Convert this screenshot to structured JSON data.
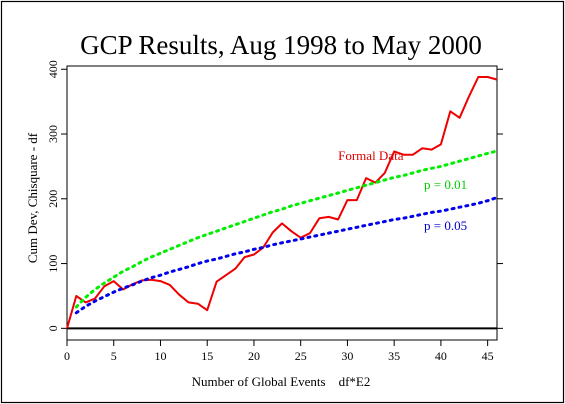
{
  "chart_data": {
    "type": "line",
    "title": "GCP Results, Aug 1998 to May 2000",
    "xlabel": "Number of Global Events    df*E2",
    "ylabel": "Cum Dev, Chisquare - df",
    "xlim": [
      0,
      46
    ],
    "ylim": [
      -18,
      405
    ],
    "x_ticks": [
      0,
      5,
      10,
      15,
      20,
      25,
      30,
      35,
      40,
      45
    ],
    "y_ticks": [
      0,
      100,
      200,
      300,
      400
    ],
    "grid": false,
    "annotations": [
      {
        "text": "Formal Data",
        "color": "#dd0000",
        "x": 32.5,
        "y": 260
      },
      {
        "text": "p = 0.01",
        "color": "#00cc00",
        "x": 40.5,
        "y": 215
      },
      {
        "text": "p = 0.05",
        "color": "#0000cc",
        "x": 40.5,
        "y": 152
      }
    ],
    "series": [
      {
        "name": "Formal Data",
        "color": "#ee0000",
        "style": "solid",
        "x": [
          0,
          1,
          2,
          3,
          4,
          5,
          6,
          7,
          8,
          9,
          10,
          11,
          12,
          13,
          14,
          15,
          16,
          17,
          18,
          19,
          20,
          21,
          22,
          23,
          24,
          25,
          26,
          27,
          28,
          29,
          30,
          31,
          32,
          33,
          34,
          35,
          36,
          37,
          38,
          39,
          40,
          41,
          42,
          43,
          44,
          45,
          46
        ],
        "y": [
          0,
          50,
          40,
          46,
          65,
          73,
          60,
          68,
          74,
          75,
          73,
          67,
          52,
          40,
          38,
          28,
          72,
          82,
          92,
          110,
          114,
          125,
          148,
          162,
          150,
          140,
          147,
          170,
          172,
          168,
          198,
          198,
          232,
          225,
          240,
          273,
          268,
          268,
          278,
          276,
          284,
          335,
          325,
          358,
          388,
          388,
          384
        ]
      },
      {
        "name": "p = 0.01",
        "color": "#00ee00",
        "style": "dotted",
        "x": [
          1,
          2,
          3,
          4,
          5,
          6,
          7,
          8,
          9,
          10,
          11,
          12,
          13,
          14,
          15,
          16,
          17,
          18,
          19,
          20,
          21,
          22,
          23,
          24,
          25,
          26,
          27,
          28,
          29,
          30,
          31,
          32,
          33,
          34,
          35,
          36,
          37,
          38,
          39,
          40,
          41,
          42,
          43,
          44,
          45,
          46
        ],
        "y": [
          33,
          48,
          60,
          70,
          79,
          88,
          95,
          103,
          110,
          116,
          122,
          128,
          134,
          140,
          145,
          150,
          155,
          160,
          165,
          170,
          175,
          180,
          184,
          189,
          193,
          197,
          201,
          205,
          209,
          213,
          217,
          221,
          225,
          229,
          233,
          236,
          240,
          244,
          247,
          250,
          254,
          258,
          262,
          266,
          270,
          274
        ]
      },
      {
        "name": "p = 0.05",
        "color": "#0000ee",
        "style": "dotted",
        "x": [
          1,
          2,
          3,
          4,
          5,
          6,
          7,
          8,
          9,
          10,
          11,
          12,
          13,
          14,
          15,
          16,
          17,
          18,
          19,
          20,
          21,
          22,
          23,
          24,
          25,
          26,
          27,
          28,
          29,
          30,
          31,
          32,
          33,
          34,
          35,
          36,
          37,
          38,
          39,
          40,
          41,
          42,
          43,
          44,
          45,
          46
        ],
        "y": [
          24,
          34,
          42,
          49,
          56,
          62,
          67,
          73,
          78,
          82,
          87,
          91,
          95,
          100,
          104,
          107,
          111,
          115,
          118,
          122,
          125,
          129,
          132,
          135,
          138,
          141,
          144,
          147,
          150,
          153,
          156,
          159,
          162,
          165,
          168,
          170,
          173,
          176,
          179,
          181,
          184,
          187,
          190,
          193,
          197,
          202
        ]
      }
    ],
    "baseline": {
      "y": 0,
      "color": "#000000"
    }
  }
}
